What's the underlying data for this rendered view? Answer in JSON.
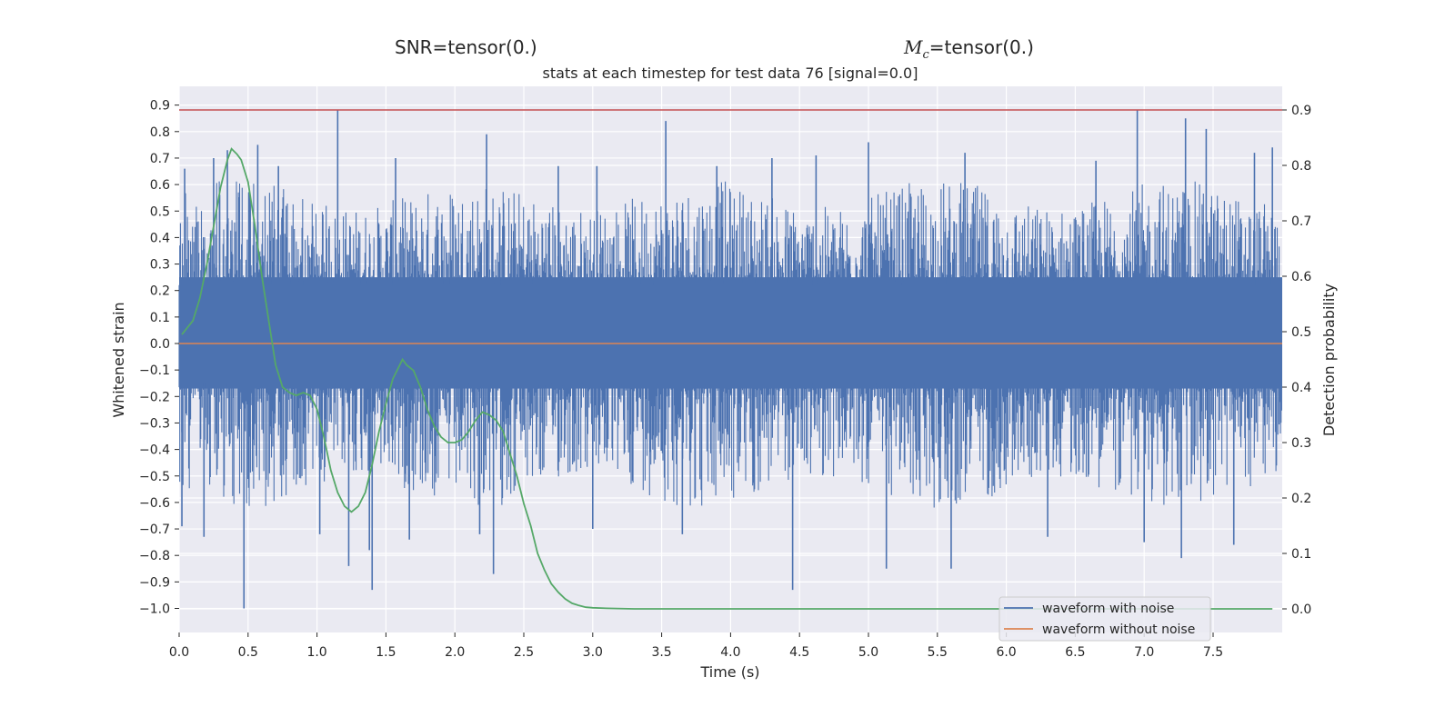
{
  "header": {
    "snr_prefix": "SNR=",
    "snr_value": "tensor(0.)",
    "mc_symbol": "M",
    "mc_subscript": "c",
    "mc_value": "=tensor(0.)"
  },
  "chart_data": {
    "type": "line",
    "title": "stats at each timestep for test data 76 [signal=0.0]",
    "xlabel": "Time (s)",
    "ylabel": "Whitened strain",
    "y2label": "Detection probability",
    "xlim": [
      0.0,
      7.99
    ],
    "ylim": [
      -1.07,
      1.0
    ],
    "y2lim": [
      -0.04,
      0.94
    ],
    "xticks": [
      "0.0",
      "0.5",
      "1.0",
      "1.5",
      "2.0",
      "2.5",
      "3.0",
      "3.5",
      "4.0",
      "4.5",
      "5.0",
      "5.5",
      "6.0",
      "6.5",
      "7.0",
      "7.5"
    ],
    "yticks": [
      "0.9",
      "0.8",
      "0.7",
      "0.6",
      "0.5",
      "0.4",
      "0.3",
      "0.2",
      "0.1",
      "0.0",
      "−0.1",
      "−0.2",
      "−0.3",
      "−0.4",
      "−0.5",
      "−0.6",
      "−0.7",
      "−0.8",
      "−0.9",
      "−1.0"
    ],
    "y2ticks": [
      "0.9",
      "0.8",
      "0.7",
      "0.6",
      "0.5",
      "0.4",
      "0.3",
      "0.2",
      "0.1",
      "0.0"
    ],
    "background": "#eaeaf2",
    "grid": true,
    "legend_position": "lower-right",
    "series": [
      {
        "name": "waveform with noise",
        "color": "#4c72b0",
        "axis": "left",
        "style": "noise",
        "amplitude_band": [
          -0.45,
          0.45
        ],
        "peaks": [
          {
            "x": 0.02,
            "y": -0.69
          },
          {
            "x": 0.04,
            "y": 0.66
          },
          {
            "x": 0.18,
            "y": -0.73
          },
          {
            "x": 0.25,
            "y": 0.7
          },
          {
            "x": 0.35,
            "y": 0.73
          },
          {
            "x": 0.47,
            "y": -1.0
          },
          {
            "x": 0.57,
            "y": 0.75
          },
          {
            "x": 0.72,
            "y": 0.67
          },
          {
            "x": 1.02,
            "y": -0.72
          },
          {
            "x": 1.15,
            "y": 0.88
          },
          {
            "x": 1.23,
            "y": -0.84
          },
          {
            "x": 1.4,
            "y": -0.93
          },
          {
            "x": 1.38,
            "y": -0.78
          },
          {
            "x": 1.57,
            "y": 0.7
          },
          {
            "x": 1.67,
            "y": -0.74
          },
          {
            "x": 2.18,
            "y": -0.72
          },
          {
            "x": 2.23,
            "y": 0.79
          },
          {
            "x": 2.28,
            "y": -0.87
          },
          {
            "x": 2.75,
            "y": 0.67
          },
          {
            "x": 3.03,
            "y": 0.67
          },
          {
            "x": 3.0,
            "y": -0.7
          },
          {
            "x": 3.53,
            "y": 0.84
          },
          {
            "x": 3.65,
            "y": -0.72
          },
          {
            "x": 3.9,
            "y": 0.67
          },
          {
            "x": 4.3,
            "y": 0.7
          },
          {
            "x": 4.45,
            "y": -0.93
          },
          {
            "x": 4.62,
            "y": 0.71
          },
          {
            "x": 5.0,
            "y": 0.76
          },
          {
            "x": 5.13,
            "y": -0.85
          },
          {
            "x": 5.6,
            "y": -0.85
          },
          {
            "x": 5.7,
            "y": 0.72
          },
          {
            "x": 6.3,
            "y": -0.73
          },
          {
            "x": 6.65,
            "y": 0.69
          },
          {
            "x": 6.95,
            "y": 0.88
          },
          {
            "x": 7.0,
            "y": -0.75
          },
          {
            "x": 7.27,
            "y": -0.81
          },
          {
            "x": 7.3,
            "y": 0.85
          },
          {
            "x": 7.45,
            "y": 0.81
          },
          {
            "x": 7.65,
            "y": -0.76
          },
          {
            "x": 7.8,
            "y": 0.72
          },
          {
            "x": 7.93,
            "y": 0.74
          }
        ]
      },
      {
        "name": "waveform without noise",
        "color": "#dd8452",
        "axis": "left",
        "x": [
          0.0,
          7.99
        ],
        "y": [
          0.0,
          0.0
        ]
      },
      {
        "name": "",
        "color": "#55a868",
        "axis": "right",
        "x": [
          0.02,
          0.1,
          0.15,
          0.2,
          0.25,
          0.3,
          0.35,
          0.38,
          0.42,
          0.45,
          0.5,
          0.55,
          0.6,
          0.65,
          0.7,
          0.75,
          0.8,
          0.85,
          0.9,
          0.95,
          1.0,
          1.05,
          1.1,
          1.15,
          1.2,
          1.25,
          1.3,
          1.35,
          1.4,
          1.45,
          1.5,
          1.55,
          1.6,
          1.62,
          1.65,
          1.7,
          1.75,
          1.8,
          1.85,
          1.9,
          1.95,
          2.0,
          2.05,
          2.1,
          2.15,
          2.2,
          2.25,
          2.3,
          2.35,
          2.4,
          2.45,
          2.5,
          2.55,
          2.6,
          2.65,
          2.7,
          2.75,
          2.8,
          2.85,
          2.9,
          2.95,
          3.0,
          3.1,
          3.3,
          3.5,
          4.0,
          5.0,
          6.0,
          7.0,
          7.93
        ],
        "y": [
          0.495,
          0.52,
          0.56,
          0.62,
          0.69,
          0.76,
          0.81,
          0.83,
          0.82,
          0.81,
          0.77,
          0.69,
          0.6,
          0.52,
          0.44,
          0.4,
          0.39,
          0.385,
          0.39,
          0.385,
          0.36,
          0.31,
          0.25,
          0.21,
          0.185,
          0.175,
          0.185,
          0.21,
          0.26,
          0.32,
          0.37,
          0.415,
          0.44,
          0.45,
          0.44,
          0.43,
          0.4,
          0.36,
          0.33,
          0.31,
          0.3,
          0.3,
          0.305,
          0.32,
          0.34,
          0.355,
          0.35,
          0.34,
          0.32,
          0.28,
          0.24,
          0.19,
          0.15,
          0.1,
          0.07,
          0.045,
          0.03,
          0.018,
          0.01,
          0.006,
          0.003,
          0.002,
          0.001,
          0.0,
          0.0,
          0.0,
          0.0,
          0.0,
          0.0,
          0.0
        ]
      }
    ],
    "hlines": [
      {
        "axis": "right",
        "y": 0.9,
        "color": "#c44e52"
      }
    ]
  }
}
